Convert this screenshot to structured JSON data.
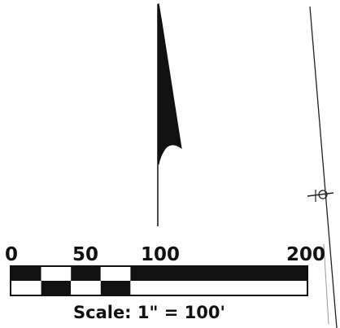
{
  "scale_bar": {
    "ticks": [
      "0",
      "50",
      "100",
      "200"
    ],
    "caption": "Scale: 1\" = 100'",
    "units_per_inch": 100,
    "max_value": 200,
    "segment_pattern_top": [
      "black",
      "white",
      "black",
      "white",
      "black"
    ],
    "segment_pattern_bottom": [
      "white",
      "black",
      "white",
      "black",
      "white"
    ]
  },
  "north_arrow": {
    "icon": "north-arrow-icon"
  },
  "colors": {
    "ink": "#111111",
    "paper": "#ffffff"
  }
}
